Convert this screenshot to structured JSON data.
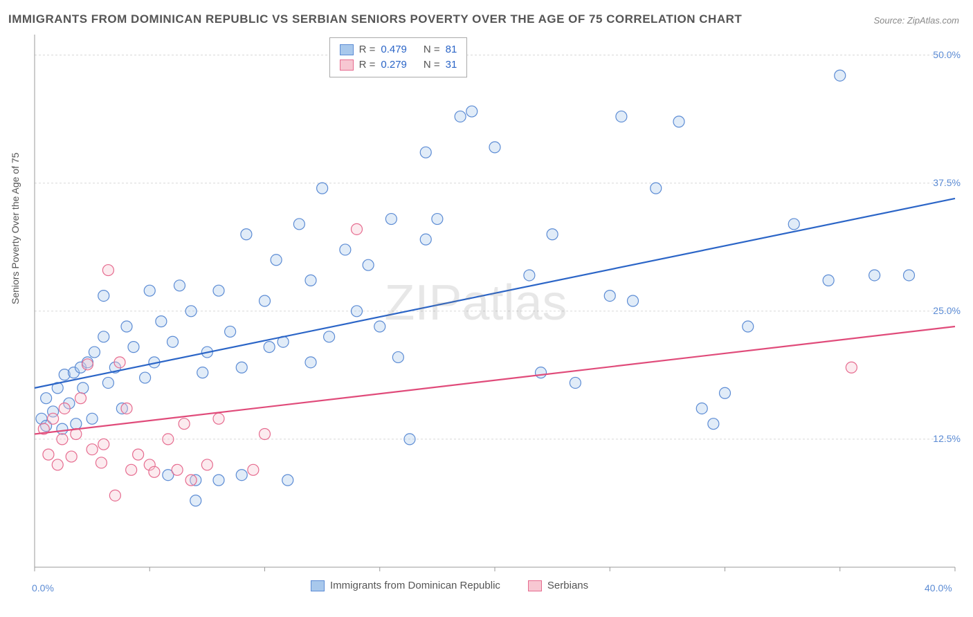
{
  "title": "IMMIGRANTS FROM DOMINICAN REPUBLIC VS SERBIAN SENIORS POVERTY OVER THE AGE OF 75 CORRELATION CHART",
  "source": "Source: ZipAtlas.com",
  "watermark": "ZIPatlas",
  "y_axis_label": "Seniors Poverty Over the Age of 75",
  "chart": {
    "type": "scatter-with-regression",
    "xlim": [
      0,
      40
    ],
    "ylim": [
      0,
      52
    ],
    "x_tick_labels": {
      "min": "0.0%",
      "max": "40.0%"
    },
    "y_tick_labels": [
      "12.5%",
      "25.0%",
      "37.5%",
      "50.0%"
    ],
    "y_tick_values": [
      12.5,
      25.0,
      37.5,
      50.0
    ],
    "x_minor_tick_step": 5,
    "y_grid_values": [
      12.5,
      25.0,
      37.5,
      50.0
    ],
    "grid_color": "#d8d8d8",
    "grid_dash": "3,3",
    "background_color": "#ffffff",
    "axis_color": "#999999",
    "tick_label_color": "#5b8bd4",
    "marker_radius": 8,
    "marker_stroke_width": 1.2,
    "marker_fill_opacity": 0.35,
    "regression_line_width": 2.2
  },
  "series": [
    {
      "name": "Immigrants from Dominican Republic",
      "color_fill": "#a8c8ec",
      "color_stroke": "#5b8bd4",
      "line_color": "#2b65c7",
      "R": "0.479",
      "N": "81",
      "regression": {
        "x1": 0,
        "y1": 17.5,
        "x2": 40,
        "y2": 36.0
      },
      "points": [
        [
          0.3,
          14.5
        ],
        [
          0.5,
          13.8
        ],
        [
          0.5,
          16.5
        ],
        [
          0.8,
          15.2
        ],
        [
          1.0,
          17.5
        ],
        [
          1.2,
          13.5
        ],
        [
          1.3,
          18.8
        ],
        [
          1.5,
          16.0
        ],
        [
          1.7,
          19.0
        ],
        [
          1.8,
          14.0
        ],
        [
          2.0,
          19.5
        ],
        [
          2.1,
          17.5
        ],
        [
          2.3,
          20.0
        ],
        [
          2.5,
          14.5
        ],
        [
          2.6,
          21.0
        ],
        [
          3.0,
          22.5
        ],
        [
          3.0,
          26.5
        ],
        [
          3.2,
          18.0
        ],
        [
          3.5,
          19.5
        ],
        [
          3.8,
          15.5
        ],
        [
          4.0,
          23.5
        ],
        [
          4.3,
          21.5
        ],
        [
          4.8,
          18.5
        ],
        [
          5.0,
          27.0
        ],
        [
          5.2,
          20.0
        ],
        [
          5.5,
          24.0
        ],
        [
          5.8,
          9.0
        ],
        [
          6.0,
          22.0
        ],
        [
          6.3,
          27.5
        ],
        [
          6.8,
          25.0
        ],
        [
          7.0,
          6.5
        ],
        [
          7.0,
          8.5
        ],
        [
          7.3,
          19.0
        ],
        [
          7.5,
          21.0
        ],
        [
          8.0,
          27.0
        ],
        [
          8.0,
          8.5
        ],
        [
          8.5,
          23.0
        ],
        [
          9.0,
          19.5
        ],
        [
          9.2,
          32.5
        ],
        [
          9.0,
          9.0
        ],
        [
          10.0,
          26.0
        ],
        [
          10.2,
          21.5
        ],
        [
          10.5,
          30.0
        ],
        [
          10.8,
          22.0
        ],
        [
          11.0,
          8.5
        ],
        [
          11.5,
          33.5
        ],
        [
          12.0,
          28.0
        ],
        [
          12.0,
          20.0
        ],
        [
          12.5,
          37.0
        ],
        [
          12.8,
          22.5
        ],
        [
          13.5,
          31.0
        ],
        [
          14.0,
          25.0
        ],
        [
          14.5,
          29.5
        ],
        [
          15.0,
          23.5
        ],
        [
          15.5,
          34.0
        ],
        [
          15.8,
          20.5
        ],
        [
          16.3,
          12.5
        ],
        [
          17.0,
          32.0
        ],
        [
          17.0,
          40.5
        ],
        [
          17.5,
          34.0
        ],
        [
          18.5,
          44.0
        ],
        [
          19.0,
          44.5
        ],
        [
          20.0,
          41.0
        ],
        [
          21.5,
          28.5
        ],
        [
          22.0,
          19.0
        ],
        [
          22.5,
          32.5
        ],
        [
          23.5,
          18.0
        ],
        [
          25.0,
          26.5
        ],
        [
          25.5,
          44.0
        ],
        [
          26.0,
          26.0
        ],
        [
          27.0,
          37.0
        ],
        [
          28.0,
          43.5
        ],
        [
          29.0,
          15.5
        ],
        [
          29.5,
          14.0
        ],
        [
          30.0,
          17.0
        ],
        [
          31.0,
          23.5
        ],
        [
          33.0,
          33.5
        ],
        [
          34.5,
          28.0
        ],
        [
          35.0,
          48.0
        ],
        [
          36.5,
          28.5
        ],
        [
          38.0,
          28.5
        ]
      ]
    },
    {
      "name": "Serbians",
      "color_fill": "#f7c7d2",
      "color_stroke": "#e66b8f",
      "line_color": "#e04b7a",
      "R": "0.279",
      "N": "31",
      "regression": {
        "x1": 0,
        "y1": 13.0,
        "x2": 40,
        "y2": 23.5
      },
      "points": [
        [
          0.4,
          13.5
        ],
        [
          0.6,
          11.0
        ],
        [
          0.8,
          14.5
        ],
        [
          1.0,
          10.0
        ],
        [
          1.2,
          12.5
        ],
        [
          1.3,
          15.5
        ],
        [
          1.6,
          10.8
        ],
        [
          1.8,
          13.0
        ],
        [
          2.0,
          16.5
        ],
        [
          2.3,
          19.8
        ],
        [
          2.5,
          11.5
        ],
        [
          2.9,
          10.2
        ],
        [
          3.2,
          29.0
        ],
        [
          3.0,
          12.0
        ],
        [
          3.5,
          7.0
        ],
        [
          3.7,
          20.0
        ],
        [
          4.0,
          15.5
        ],
        [
          4.2,
          9.5
        ],
        [
          4.5,
          11.0
        ],
        [
          5.0,
          10.0
        ],
        [
          5.2,
          9.3
        ],
        [
          5.8,
          12.5
        ],
        [
          6.2,
          9.5
        ],
        [
          6.5,
          14.0
        ],
        [
          6.8,
          8.5
        ],
        [
          7.5,
          10.0
        ],
        [
          8.0,
          14.5
        ],
        [
          9.5,
          9.5
        ],
        [
          10.0,
          13.0
        ],
        [
          14.0,
          33.0
        ],
        [
          35.5,
          19.5
        ]
      ]
    }
  ],
  "legend_top": {
    "r_label": "R =",
    "n_label": "N ="
  },
  "legend_bottom": {
    "items": [
      {
        "label": "Immigrants from Dominican Republic",
        "series": 0
      },
      {
        "label": "Serbians",
        "series": 1
      }
    ]
  }
}
